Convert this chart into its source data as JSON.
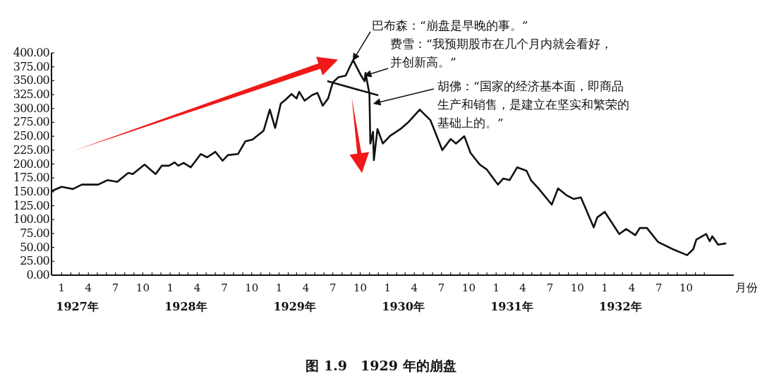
{
  "chart_data": {
    "type": "line",
    "title": "图 1.9　1929 年的崩盘",
    "xlabel": "月份",
    "xlim": [
      "1926-11-28",
      "1933-03-10"
    ],
    "ylim": [
      0,
      400
    ],
    "yticks": [
      {
        "value": 0,
        "label": "0.00"
      },
      {
        "value": 25,
        "label": "25.00"
      },
      {
        "value": 50,
        "label": "50.00"
      },
      {
        "value": 75,
        "label": "75.00"
      },
      {
        "value": 100,
        "label": "100.00"
      },
      {
        "value": 125,
        "label": "125.00"
      },
      {
        "value": 150,
        "label": "150.00"
      },
      {
        "value": 175,
        "label": "175.00"
      },
      {
        "value": 200,
        "label": "200.00"
      },
      {
        "value": 225,
        "label": "225.00"
      },
      {
        "value": 250,
        "label": "250.00"
      },
      {
        "value": 275,
        "label": "275.00"
      },
      {
        "value": 300,
        "label": "300.00"
      },
      {
        "value": 325,
        "label": "325.00"
      },
      {
        "value": 350,
        "label": "350.00"
      },
      {
        "value": 375,
        "label": "375.00"
      },
      {
        "value": 400,
        "label": "400.00"
      }
    ],
    "xticks": [
      {
        "value": "1927-01-01",
        "label": "1"
      },
      {
        "value": "1927-02-01",
        "label": null
      },
      {
        "value": "1927-03-01",
        "label": null
      },
      {
        "value": "1927-04-01",
        "label": "4"
      },
      {
        "value": "1927-05-01",
        "label": null
      },
      {
        "value": "1927-06-01",
        "label": null
      },
      {
        "value": "1927-07-01",
        "label": "7"
      },
      {
        "value": "1927-08-01",
        "label": null
      },
      {
        "value": "1927-09-01",
        "label": null
      },
      {
        "value": "1927-10-01",
        "label": "10"
      },
      {
        "value": "1927-11-01",
        "label": null
      },
      {
        "value": "1927-12-01",
        "label": null
      },
      {
        "value": "1928-01-01",
        "label": "1"
      },
      {
        "value": "1928-02-01",
        "label": null
      },
      {
        "value": "1928-03-01",
        "label": null
      },
      {
        "value": "1928-04-01",
        "label": "4"
      },
      {
        "value": "1928-05-01",
        "label": null
      },
      {
        "value": "1928-06-01",
        "label": null
      },
      {
        "value": "1928-07-01",
        "label": "7"
      },
      {
        "value": "1928-08-01",
        "label": null
      },
      {
        "value": "1928-09-01",
        "label": null
      },
      {
        "value": "1928-10-01",
        "label": "10"
      },
      {
        "value": "1928-11-01",
        "label": null
      },
      {
        "value": "1928-12-01",
        "label": null
      },
      {
        "value": "1929-01-01",
        "label": "1"
      },
      {
        "value": "1929-02-01",
        "label": null
      },
      {
        "value": "1929-03-01",
        "label": null
      },
      {
        "value": "1929-04-01",
        "label": "4"
      },
      {
        "value": "1929-05-01",
        "label": null
      },
      {
        "value": "1929-06-01",
        "label": null
      },
      {
        "value": "1929-07-01",
        "label": "7"
      },
      {
        "value": "1929-08-01",
        "label": null
      },
      {
        "value": "1929-09-01",
        "label": null
      },
      {
        "value": "1929-10-01",
        "label": "10"
      },
      {
        "value": "1929-11-01",
        "label": null
      },
      {
        "value": "1929-12-01",
        "label": null
      },
      {
        "value": "1930-01-01",
        "label": "1"
      },
      {
        "value": "1930-02-01",
        "label": null
      },
      {
        "value": "1930-03-01",
        "label": null
      },
      {
        "value": "1930-04-01",
        "label": "4"
      },
      {
        "value": "1930-05-01",
        "label": null
      },
      {
        "value": "1930-06-01",
        "label": null
      },
      {
        "value": "1930-07-01",
        "label": "7"
      },
      {
        "value": "1930-08-01",
        "label": null
      },
      {
        "value": "1930-09-01",
        "label": null
      },
      {
        "value": "1930-10-01",
        "label": "10"
      },
      {
        "value": "1930-11-01",
        "label": null
      },
      {
        "value": "1930-12-01",
        "label": null
      },
      {
        "value": "1931-01-01",
        "label": "1"
      },
      {
        "value": "1931-02-01",
        "label": null
      },
      {
        "value": "1931-03-01",
        "label": null
      },
      {
        "value": "1931-04-01",
        "label": "4"
      },
      {
        "value": "1931-05-01",
        "label": null
      },
      {
        "value": "1931-06-01",
        "label": null
      },
      {
        "value": "1931-07-01",
        "label": "7"
      },
      {
        "value": "1931-08-01",
        "label": null
      },
      {
        "value": "1931-09-01",
        "label": null
      },
      {
        "value": "1931-10-01",
        "label": "10"
      },
      {
        "value": "1931-11-01",
        "label": null
      },
      {
        "value": "1931-12-01",
        "label": null
      },
      {
        "value": "1932-01-01",
        "label": "1"
      },
      {
        "value": "1932-02-01",
        "label": null
      },
      {
        "value": "1932-03-01",
        "label": null
      },
      {
        "value": "1932-04-01",
        "label": "4"
      },
      {
        "value": "1932-05-01",
        "label": null
      },
      {
        "value": "1932-06-01",
        "label": null
      },
      {
        "value": "1932-07-01",
        "label": "7"
      },
      {
        "value": "1932-08-01",
        "label": null
      },
      {
        "value": "1932-09-01",
        "label": null
      },
      {
        "value": "1932-10-01",
        "label": "10"
      },
      {
        "value": "1932-11-01",
        "label": null
      },
      {
        "value": "1932-12-01",
        "label": null
      }
    ],
    "series": [
      {
        "color": "#111111",
        "x": [
          "1926-12-01",
          "1927-01-01",
          "1927-02-08",
          "1927-03-10",
          "1927-05-04",
          "1927-06-04",
          "1927-07-07",
          "1927-08-13",
          "1927-08-28",
          "1927-10-07",
          "1927-11-13",
          "1927-12-04",
          "1927-12-28",
          "1928-01-16",
          "1928-01-28",
          "1928-02-15",
          "1928-03-10",
          "1928-04-13",
          "1928-05-04",
          "1928-06-01",
          "1928-06-25",
          "1928-07-13",
          "1928-08-16",
          "1928-09-10",
          "1928-10-04",
          "1928-11-10",
          "1928-12-01",
          "1928-12-19",
          "1929-01-07",
          "1929-01-19",
          "1929-02-12",
          "1929-03-01",
          "1929-03-10",
          "1929-03-28",
          "1929-04-22",
          "1929-05-10",
          "1929-05-28",
          "1929-06-15",
          "1929-07-01",
          "1929-07-19",
          "1929-08-13",
          "1929-09-07",
          "1929-10-04",
          "1929-10-16",
          "1929-10-19",
          "1929-11-01",
          "1929-11-04",
          "1929-11-13",
          "1929-11-16",
          "1929-11-28",
          "1929-12-16",
          "1930-01-10",
          "1930-02-13",
          "1930-03-13",
          "1930-04-19",
          "1930-05-25",
          "1930-07-04",
          "1930-08-01",
          "1930-08-19",
          "1930-09-16",
          "1930-10-07",
          "1930-11-07",
          "1930-12-01",
          "1931-01-07",
          "1931-01-25",
          "1931-02-15",
          "1931-03-13",
          "1931-04-13",
          "1931-04-28",
          "1931-05-25",
          "1931-07-07",
          "1931-07-28",
          "1931-08-25",
          "1931-09-19",
          "1931-10-13",
          "1931-11-25",
          "1931-12-07",
          "1932-01-01",
          "1932-02-19",
          "1932-03-13",
          "1932-04-13",
          "1932-04-28",
          "1932-05-22",
          "1932-06-28",
          "1932-08-16",
          "1932-10-04",
          "1932-10-25",
          "1932-11-04",
          "1932-12-07",
          "1932-12-19",
          "1932-12-28",
          "1933-01-16",
          "1933-02-10"
        ],
        "values": [
          152,
          159,
          155,
          163,
          163,
          171,
          168,
          184,
          182,
          199,
          182,
          197,
          197,
          203,
          197,
          202,
          194,
          218,
          212,
          222,
          206,
          216,
          218,
          241,
          244,
          260,
          298,
          265,
          309,
          314,
          326,
          318,
          330,
          314,
          324,
          328,
          305,
          318,
          347,
          356,
          359,
          387,
          359,
          349,
          364,
          326,
          237,
          258,
          207,
          263,
          237,
          251,
          263,
          276,
          298,
          279,
          225,
          245,
          237,
          250,
          220,
          199,
          190,
          163,
          174,
          171,
          194,
          188,
          171,
          155,
          127,
          156,
          144,
          137,
          140,
          86,
          104,
          114,
          74,
          83,
          72,
          85,
          85,
          60,
          47,
          36,
          47,
          64,
          74,
          61,
          70,
          55,
          57
        ]
      },
      {
        "color": "#111111",
        "x": [
          "1929-06-15",
          "1929-11-28"
        ],
        "values": [
          349,
          324
        ]
      }
    ],
    "annotations": [
      {
        "text": "巴布森：“崩盘是早晚的事。”",
        "x": "1929-09-07",
        "y": 387
      },
      {
        "text": "费雪：“我预期股市在几个月内就会看好，并创新高。”",
        "x": "1929-10-16",
        "y": 359
      },
      {
        "text": "胡佛：“国家的经济基本面，即商品生产和销售，是建立在坚实和繁荣的基础上的。”",
        "x": "1929-11-16",
        "y": 309
      },
      "1927年",
      "1928年",
      "1929年",
      "1930年",
      "1931年",
      "1932年"
    ]
  }
}
